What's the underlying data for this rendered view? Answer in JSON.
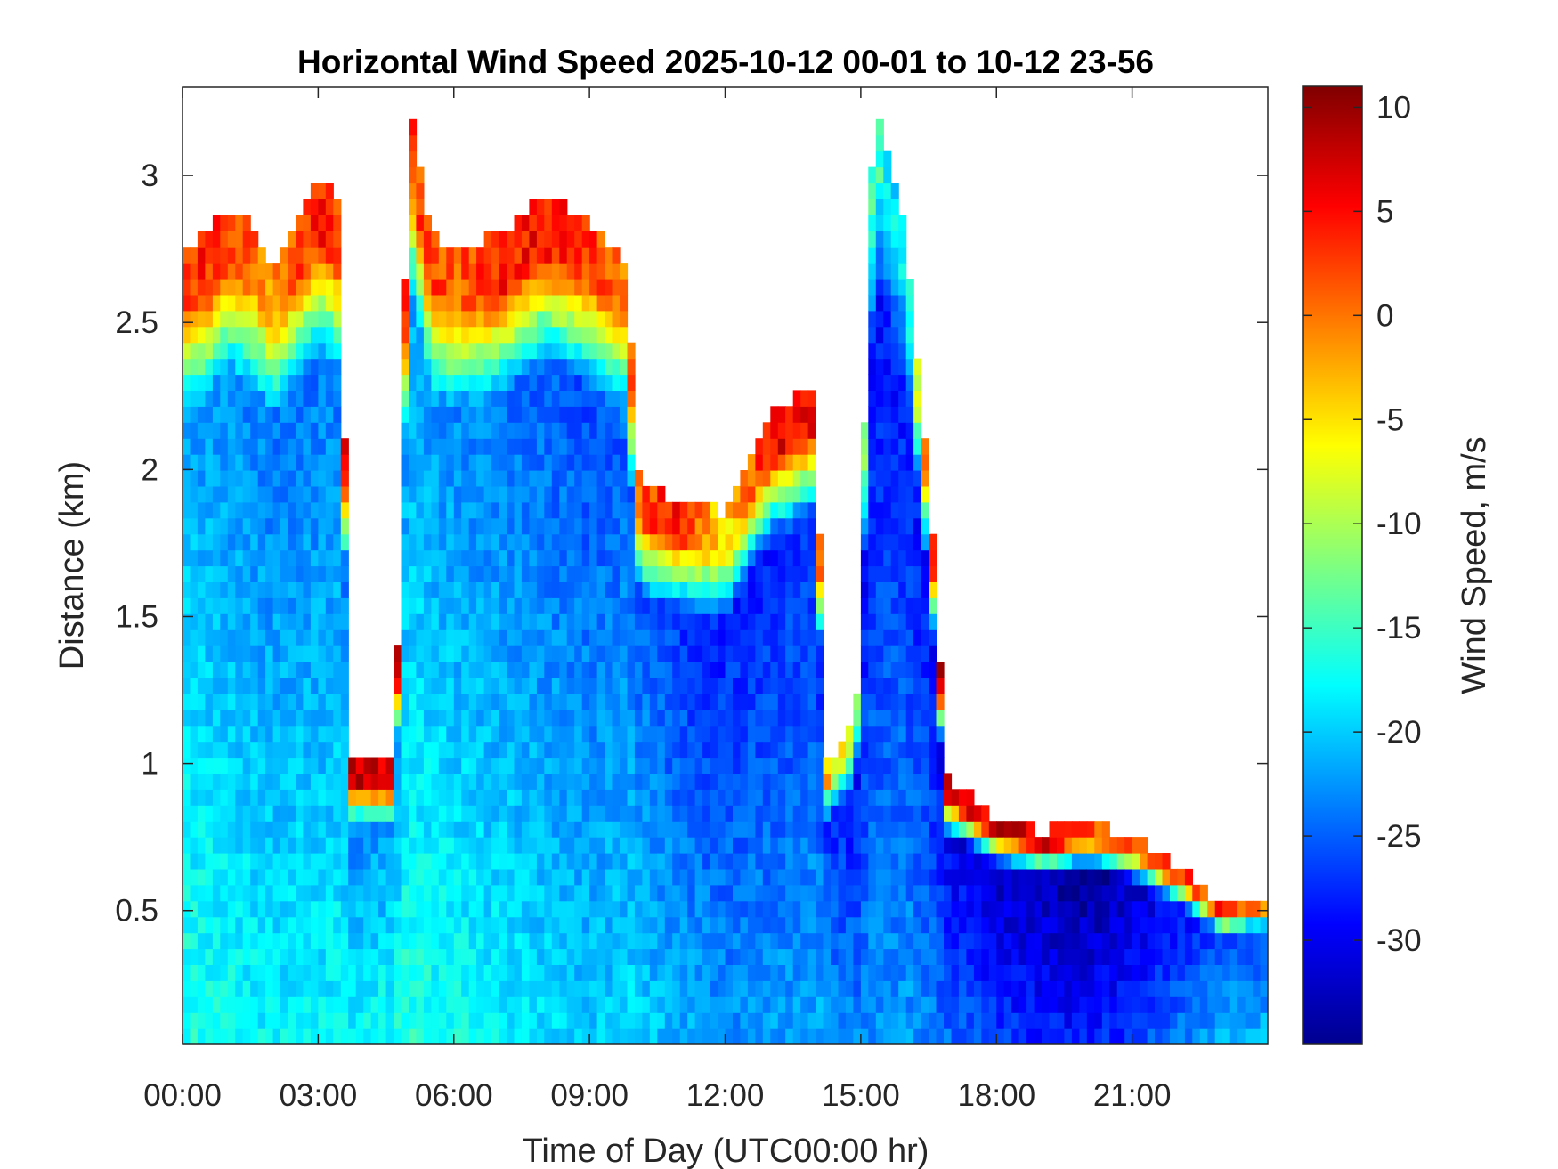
{
  "chart_data": {
    "type": "heatmap",
    "title": "Horizontal Wind Speed 2025-10-12 00-01 to 10-12 23-56",
    "xlabel": "Time of Day (UTC00:00 hr)",
    "ylabel": "Distance (km)",
    "colorbar_label": "Wind Speed, m/s",
    "colormap": "jet",
    "x_unit": "hours",
    "xlim": [
      0,
      24
    ],
    "ylim": [
      0.045,
      3.3
    ],
    "clim": [
      -35,
      11
    ],
    "x_ticks": [
      0,
      3,
      6,
      9,
      12,
      15,
      18,
      21
    ],
    "x_tick_labels": [
      "00:00",
      "03:00",
      "06:00",
      "09:00",
      "12:00",
      "15:00",
      "18:00",
      "21:00"
    ],
    "y_ticks": [
      0.5,
      1,
      1.5,
      2,
      2.5,
      3
    ],
    "y_tick_labels": [
      "0.5",
      "1",
      "1.5",
      "2",
      "2.5",
      "3"
    ],
    "colorbar_ticks": [
      -30,
      -25,
      -20,
      -15,
      -10,
      -5,
      0,
      5,
      10
    ],
    "colorbar_tick_labels": [
      "-30",
      "-25",
      "-20",
      "-15",
      "-10",
      "-5",
      "0",
      "5",
      "10"
    ],
    "grid": false,
    "echo_top_km": {
      "x": [
        0,
        0.5,
        1,
        1.5,
        2,
        2.5,
        3,
        3.5,
        3.7,
        4.7,
        5,
        5.5,
        6,
        7,
        8,
        9,
        9.8,
        10.1,
        11,
        12,
        13,
        14,
        14.2,
        14.9,
        15.3,
        16,
        16.5,
        16.9,
        18,
        19,
        20,
        21,
        22,
        23,
        23.9
      ],
      "y": [
        2.75,
        2.8,
        2.9,
        2.85,
        2.7,
        2.85,
        3.0,
        2.9,
        1.0,
        1.0,
        3.3,
        2.8,
        2.75,
        2.8,
        2.95,
        2.85,
        2.7,
        1.95,
        1.9,
        1.85,
        2.2,
        2.3,
        1.0,
        1.15,
        3.3,
        2.8,
        2.0,
        0.95,
        0.82,
        0.77,
        0.8,
        0.75,
        0.65,
        0.52,
        0.55
      ]
    },
    "echo_top_wind_speed_m_s": [
      3,
      4,
      2,
      1,
      -2,
      2,
      4,
      3,
      8,
      8,
      3,
      2,
      1,
      4,
      5,
      3,
      -1,
      2,
      4,
      -5,
      6,
      5,
      -3,
      -10,
      -15,
      -20,
      5,
      8,
      7,
      6,
      3,
      0,
      2,
      3,
      0
    ],
    "near_surface_wind_speed_m_s": {
      "x": [
        0,
        1,
        2,
        3,
        4,
        5,
        6,
        7,
        8,
        9,
        10,
        11,
        12,
        13,
        14,
        15,
        16,
        17,
        18,
        19,
        20,
        21,
        22,
        23
      ],
      "y": [
        -16,
        -17,
        -18,
        -18,
        -17,
        -16,
        -17,
        -18,
        -19,
        -20,
        -19,
        -21,
        -22,
        -22,
        -21,
        -23,
        -22,
        -24,
        -26,
        -27,
        -28,
        -26,
        -23,
        -20
      ]
    }
  }
}
